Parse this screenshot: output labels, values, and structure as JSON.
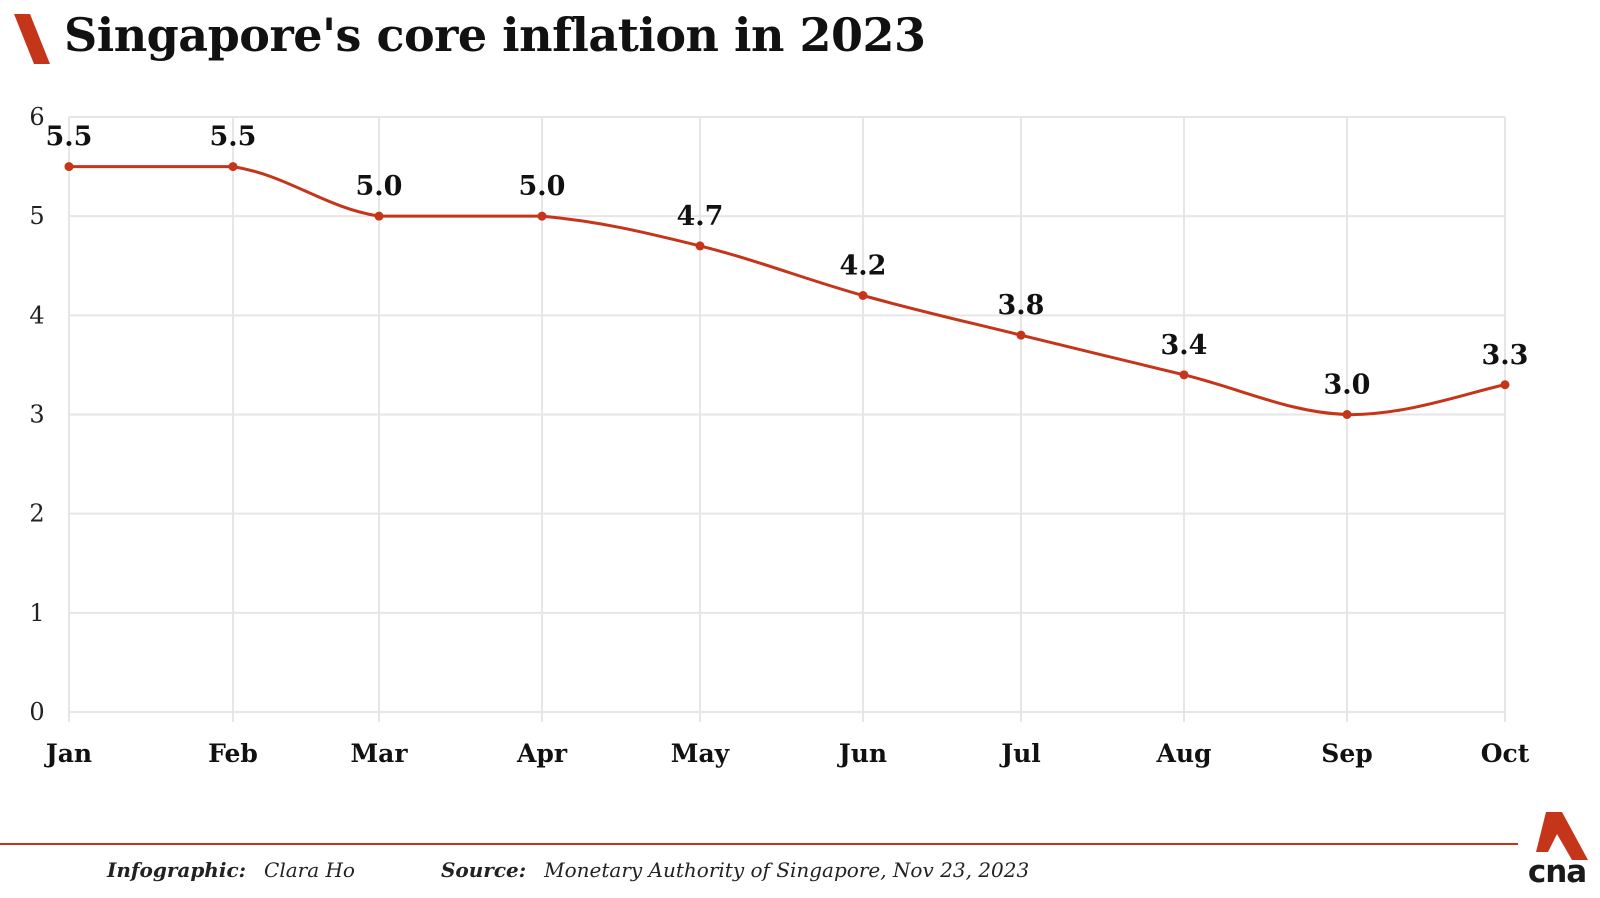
{
  "title": "Singapore's core inflation in 2023",
  "colors": {
    "accent": "#c4351a",
    "grid": "#e6e6e6",
    "text": "#111111"
  },
  "chart_data": {
    "type": "line",
    "title": "Singapore's core inflation in 2023",
    "xlabel": "",
    "ylabel": "",
    "categories": [
      "Jan",
      "Feb",
      "Mar",
      "Apr",
      "May",
      "Jun",
      "Jul",
      "Aug",
      "Sep",
      "Oct"
    ],
    "series": [
      {
        "values": [
          5.5,
          5.5,
          5.0,
          5.0,
          4.7,
          4.2,
          3.8,
          3.4,
          3.0,
          3.3
        ],
        "data_labels": [
          "5.5",
          "5.5",
          "5.0",
          "5.0",
          "4.7",
          "4.2",
          "3.8",
          "3.4",
          "3.0",
          "3.3"
        ]
      }
    ],
    "ylim": [
      0,
      6
    ],
    "y_ticks": [
      "0",
      "1",
      "2",
      "3",
      "4",
      "5",
      "6"
    ],
    "grid": true,
    "legend": "none",
    "smooth": true
  },
  "footer": {
    "infographic_label": "Infographic:",
    "infographic_value": "Clara Ho",
    "source_label": "Source:",
    "source_value": "Monetary Authority of Singapore, Nov 23, 2023"
  },
  "logo": {
    "text": "cna",
    "icon": "cna-logo-icon"
  }
}
